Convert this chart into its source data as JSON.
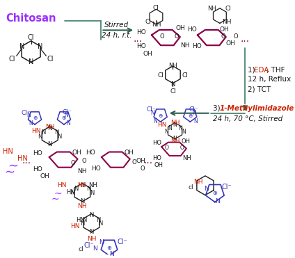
{
  "bg": "#ffffff",
  "pur": "#9b30ff",
  "dc": "#8b0047",
  "bc": "#3333bb",
  "rc": "#cc2200",
  "bk": "#1a1a1a",
  "gc": "#2f5f4f",
  "tc": "#3d7a6a"
}
